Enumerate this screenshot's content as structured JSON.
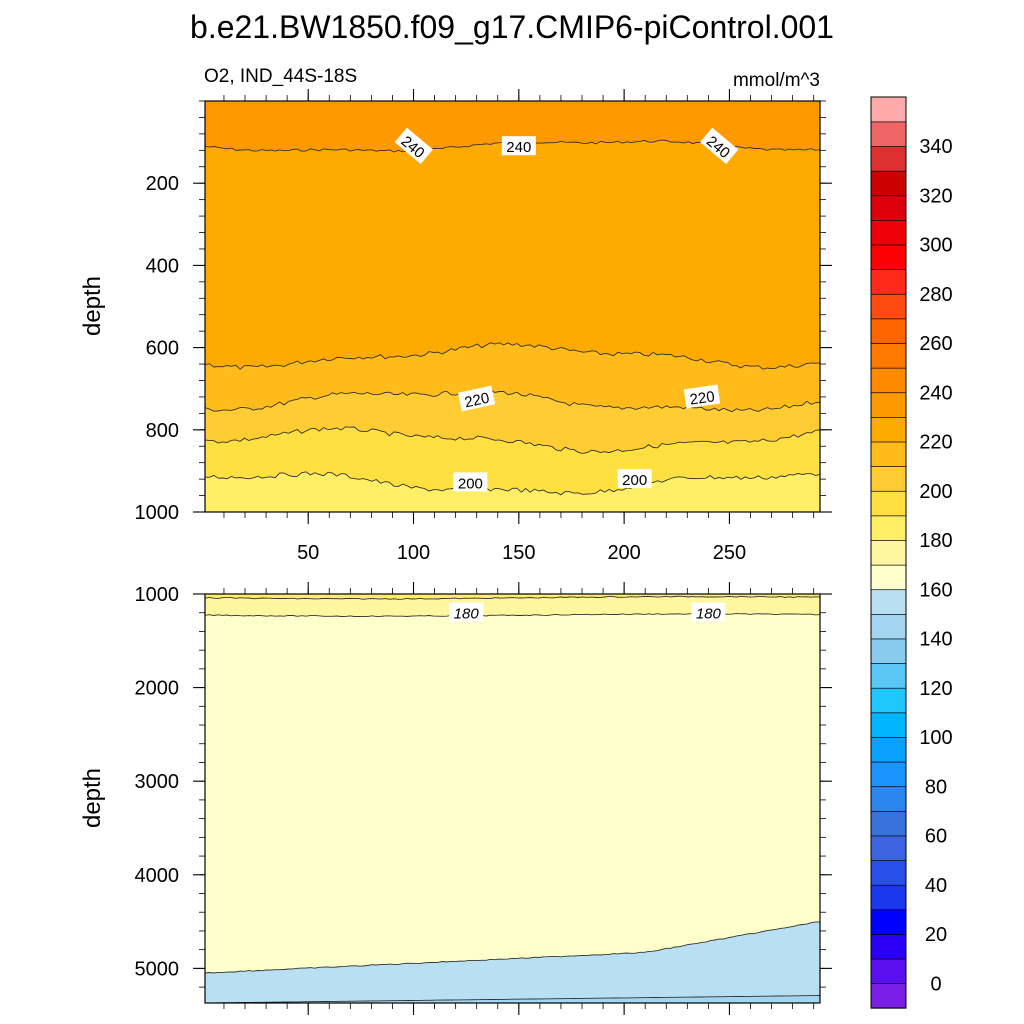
{
  "title": "b.e21.BW1850.f09_g17.CMIP6-piControl.001",
  "chart_data": {
    "type": "contour",
    "variable_label": "O2, IND_44S-18S",
    "units": "mmol/m^3",
    "x_tick_labels": [
      "50",
      "100",
      "150",
      "200",
      "250"
    ],
    "x_ticks": [
      50,
      100,
      150,
      200,
      250
    ],
    "xlim": [
      1,
      293
    ],
    "panels": [
      {
        "name": "upper",
        "ylabel": "depth",
        "ylim": [
          0,
          1000
        ],
        "y_ticks": [
          200,
          400,
          600,
          800,
          1000
        ],
        "y_tick_labels": [
          "200",
          "400",
          "600",
          "800",
          "1000"
        ],
        "contour_levels": [
          240,
          230,
          220,
          210,
          200
        ],
        "contour_depths": [
          110,
          620,
          730,
          825,
          930
        ],
        "fill_colors": [
          "#ff9900",
          "#ffaa00",
          "#ffbb1a",
          "#ffcc33",
          "#ffe040",
          "#ffee66"
        ],
        "contour_labels": [
          {
            "text": "240",
            "x": 100,
            "depth": 110,
            "angle": 40
          },
          {
            "text": "240",
            "x": 150,
            "depth": 110,
            "angle": 0
          },
          {
            "text": "240",
            "x": 245,
            "depth": 110,
            "angle": 40
          },
          {
            "text": "220",
            "x": 130,
            "depth": 725,
            "angle": -12
          },
          {
            "text": "220",
            "x": 237,
            "depth": 720,
            "angle": -8
          },
          {
            "text": "200",
            "x": 127,
            "depth": 928,
            "angle": 0
          },
          {
            "text": "200",
            "x": 205,
            "depth": 920,
            "angle": 0
          }
        ]
      },
      {
        "name": "lower",
        "ylabel": "depth",
        "ylim": [
          1000,
          5370
        ],
        "y_ticks": [
          1000,
          2000,
          3000,
          4000,
          5000
        ],
        "y_tick_labels": [
          "1000",
          "2000",
          "3000",
          "4000",
          "5000"
        ],
        "contour_levels": [
          190,
          180,
          170,
          160
        ],
        "contour_depths": [
          1040,
          1225,
          5050,
          5330
        ],
        "fill_colors": [
          "#ffee66",
          "#fff7a0",
          "#ffffcc",
          "#b8e0f2",
          "#a3d4f0"
        ],
        "contour_labels": [
          {
            "text": "180",
            "x": 125,
            "depth": 1200,
            "angle": 0
          },
          {
            "text": "180",
            "x": 240,
            "depth": 1200,
            "angle": 0
          }
        ]
      }
    ],
    "colorbar": {
      "tick_labels": [
        "0",
        "20",
        "40",
        "60",
        "80",
        "100",
        "120",
        "140",
        "160",
        "180",
        "200",
        "220",
        "240",
        "260",
        "280",
        "300",
        "320",
        "340"
      ],
      "colors_bottom_to_top": [
        "#7a1ee6",
        "#5a10ee",
        "#2a00f5",
        "#0000ff",
        "#1c38ee",
        "#2850e8",
        "#3c64e0",
        "#3a72dc",
        "#2b86ee",
        "#1a93fb",
        "#0aa0ff",
        "#00b4ff",
        "#1ec8ff",
        "#5ac8f5",
        "#88cbee",
        "#a3d4f0",
        "#b8e0f2",
        "#ffffcc",
        "#fff7a0",
        "#ffee66",
        "#ffe040",
        "#ffcc33",
        "#ffbb1a",
        "#ffaa00",
        "#ff9900",
        "#ff8a00",
        "#ff7800",
        "#ff6600",
        "#ff4a10",
        "#ff2a1a",
        "#ff0000",
        "#ee0008",
        "#dd000c",
        "#cc0000",
        "#dd3030",
        "#ee6666",
        "#ffaaaa"
      ]
    }
  }
}
